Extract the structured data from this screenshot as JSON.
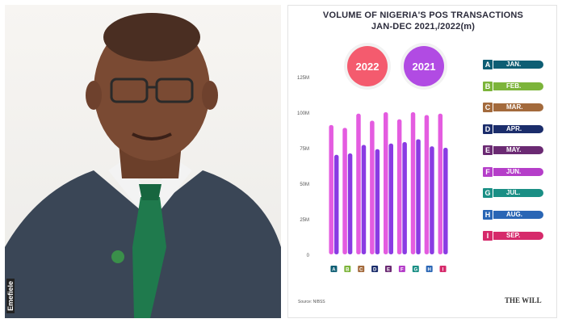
{
  "photo": {
    "caption": "Emefiele"
  },
  "chart_data": {
    "type": "bar",
    "title": "VOLUME OF NIGERIA'S POS TRANSACTIONS",
    "subtitle": "JAN-DEC 2021,/2022(m)",
    "categories": [
      "A",
      "B",
      "C",
      "D",
      "E",
      "F",
      "G",
      "H",
      "I"
    ],
    "series": [
      {
        "name": "2022",
        "values": [
          91,
          89,
          99,
          94,
          100,
          95,
          100,
          98,
          99
        ]
      },
      {
        "name": "2021",
        "values": [
          70,
          71,
          77,
          74,
          78,
          79,
          81,
          76,
          75
        ]
      }
    ],
    "ylim": [
      0,
      125
    ],
    "yticks": [
      "0",
      "25M",
      "50M",
      "75M",
      "100M",
      "125M"
    ],
    "colors": {
      "2022": "#e45ce0",
      "2021": "#8a3be3"
    },
    "legend": [
      {
        "letter": "A",
        "label": "JAN.",
        "color": "#0e5e74"
      },
      {
        "letter": "B",
        "label": "FEB.",
        "color": "#7cb43a"
      },
      {
        "letter": "C",
        "label": "MAR.",
        "color": "#a36a3c"
      },
      {
        "letter": "D",
        "label": "APR.",
        "color": "#1b2d6b"
      },
      {
        "letter": "E",
        "label": "MAY.",
        "color": "#6b2a73"
      },
      {
        "letter": "F",
        "label": "JUN.",
        "color": "#b53ec9"
      },
      {
        "letter": "G",
        "label": "JUL.",
        "color": "#1a8f85"
      },
      {
        "letter": "H",
        "label": "AUG.",
        "color": "#2a66b5"
      },
      {
        "letter": "I",
        "label": "SEP.",
        "color": "#d62a6b"
      }
    ],
    "legend_position": "right",
    "source": "Source: NIBSS",
    "brand": "THE WILL"
  }
}
